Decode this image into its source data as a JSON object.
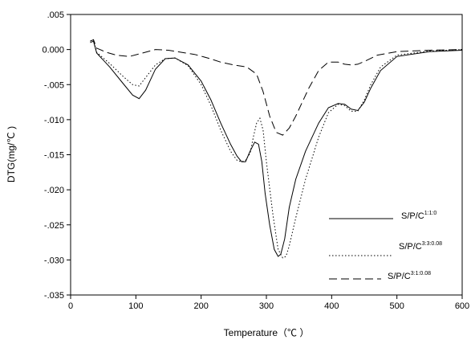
{
  "chart_data": {
    "type": "line",
    "xlabel": "Temperature（℃ ）",
    "ylabel": "DTG(mg/℃ )",
    "xlim": [
      0,
      600
    ],
    "ylim": [
      -0.035,
      0.005
    ],
    "x_ticks": [
      0,
      100,
      200,
      300,
      400,
      500,
      600
    ],
    "x_tick_labels": [
      "0",
      "100",
      "200",
      "300",
      "400",
      "500",
      "600"
    ],
    "y_ticks": [
      0.005,
      0.0,
      -0.005,
      -0.01,
      -0.015,
      -0.02,
      -0.025,
      -0.03,
      -0.035
    ],
    "y_tick_labels": [
      ".005",
      "0.000",
      "-.005",
      "-.010",
      "-.015",
      "-.020",
      "-.025",
      "-.030",
      "-.035"
    ],
    "grid": false,
    "legend_position": "bottom-right",
    "series": [
      {
        "name": "S/P/C",
        "name_sup": "1:1:0",
        "style": "solid",
        "x": [
          30,
          35,
          40,
          60,
          80,
          95,
          105,
          115,
          130,
          145,
          160,
          180,
          200,
          215,
          230,
          245,
          255,
          262,
          268,
          275,
          282,
          288,
          293,
          298,
          305,
          312,
          318,
          322,
          328,
          335,
          345,
          360,
          380,
          395,
          410,
          420,
          430,
          440,
          450,
          460,
          475,
          500,
          550,
          600
        ],
        "y": [
          0.001,
          0.0012,
          -0.0005,
          -0.0025,
          -0.0048,
          -0.0065,
          -0.007,
          -0.0058,
          -0.0028,
          -0.0013,
          -0.0012,
          -0.0022,
          -0.0045,
          -0.0072,
          -0.0105,
          -0.0135,
          -0.0152,
          -0.016,
          -0.016,
          -0.0145,
          -0.0132,
          -0.0135,
          -0.016,
          -0.0205,
          -0.025,
          -0.0285,
          -0.0295,
          -0.0292,
          -0.027,
          -0.0225,
          -0.0185,
          -0.0145,
          -0.0105,
          -0.0083,
          -0.0077,
          -0.0078,
          -0.0085,
          -0.0087,
          -0.0075,
          -0.0055,
          -0.003,
          -0.001,
          -0.0003,
          -0.0001
        ]
      },
      {
        "name": "S/P/C",
        "name_sup": "3:3:0.08",
        "style": "dotted",
        "x": [
          30,
          35,
          40,
          60,
          80,
          95,
          105,
          115,
          130,
          145,
          160,
          180,
          200,
          215,
          230,
          245,
          255,
          262,
          268,
          275,
          280,
          285,
          290,
          295,
          300,
          310,
          318,
          325,
          330,
          335,
          345,
          360,
          380,
          395,
          410,
          420,
          430,
          440,
          450,
          460,
          475,
          500,
          550,
          600
        ],
        "y": [
          0.0012,
          0.0014,
          -0.0004,
          -0.002,
          -0.0038,
          -0.005,
          -0.0052,
          -0.004,
          -0.0022,
          -0.0013,
          -0.0012,
          -0.0023,
          -0.005,
          -0.008,
          -0.0115,
          -0.0145,
          -0.0158,
          -0.016,
          -0.0158,
          -0.0148,
          -0.0125,
          -0.0105,
          -0.0098,
          -0.0115,
          -0.016,
          -0.0235,
          -0.0285,
          -0.0297,
          -0.0295,
          -0.028,
          -0.024,
          -0.0185,
          -0.0125,
          -0.009,
          -0.0078,
          -0.008,
          -0.0088,
          -0.0088,
          -0.0072,
          -0.005,
          -0.0025,
          -0.0008,
          -0.0002,
          0.0
        ]
      },
      {
        "name": "S/P/C",
        "name_sup": "3:1:0.08",
        "style": "dashed",
        "x": [
          30,
          35,
          40,
          55,
          70,
          90,
          110,
          130,
          150,
          170,
          190,
          210,
          230,
          250,
          270,
          285,
          295,
          305,
          315,
          325,
          335,
          345,
          355,
          365,
          380,
          395,
          410,
          420,
          430,
          440,
          450,
          470,
          500,
          550,
          600
        ],
        "y": [
          0.0012,
          0.0014,
          0.0002,
          -0.0004,
          -0.0008,
          -0.001,
          -0.0005,
          0.0,
          -0.0001,
          -0.0004,
          -0.0007,
          -0.0012,
          -0.0018,
          -0.0022,
          -0.0025,
          -0.0035,
          -0.006,
          -0.0095,
          -0.0118,
          -0.0122,
          -0.0112,
          -0.0095,
          -0.0075,
          -0.0055,
          -0.003,
          -0.0018,
          -0.0018,
          -0.0021,
          -0.0022,
          -0.0021,
          -0.0017,
          -0.0008,
          -0.0003,
          -0.0001,
          0.0
        ]
      }
    ]
  }
}
